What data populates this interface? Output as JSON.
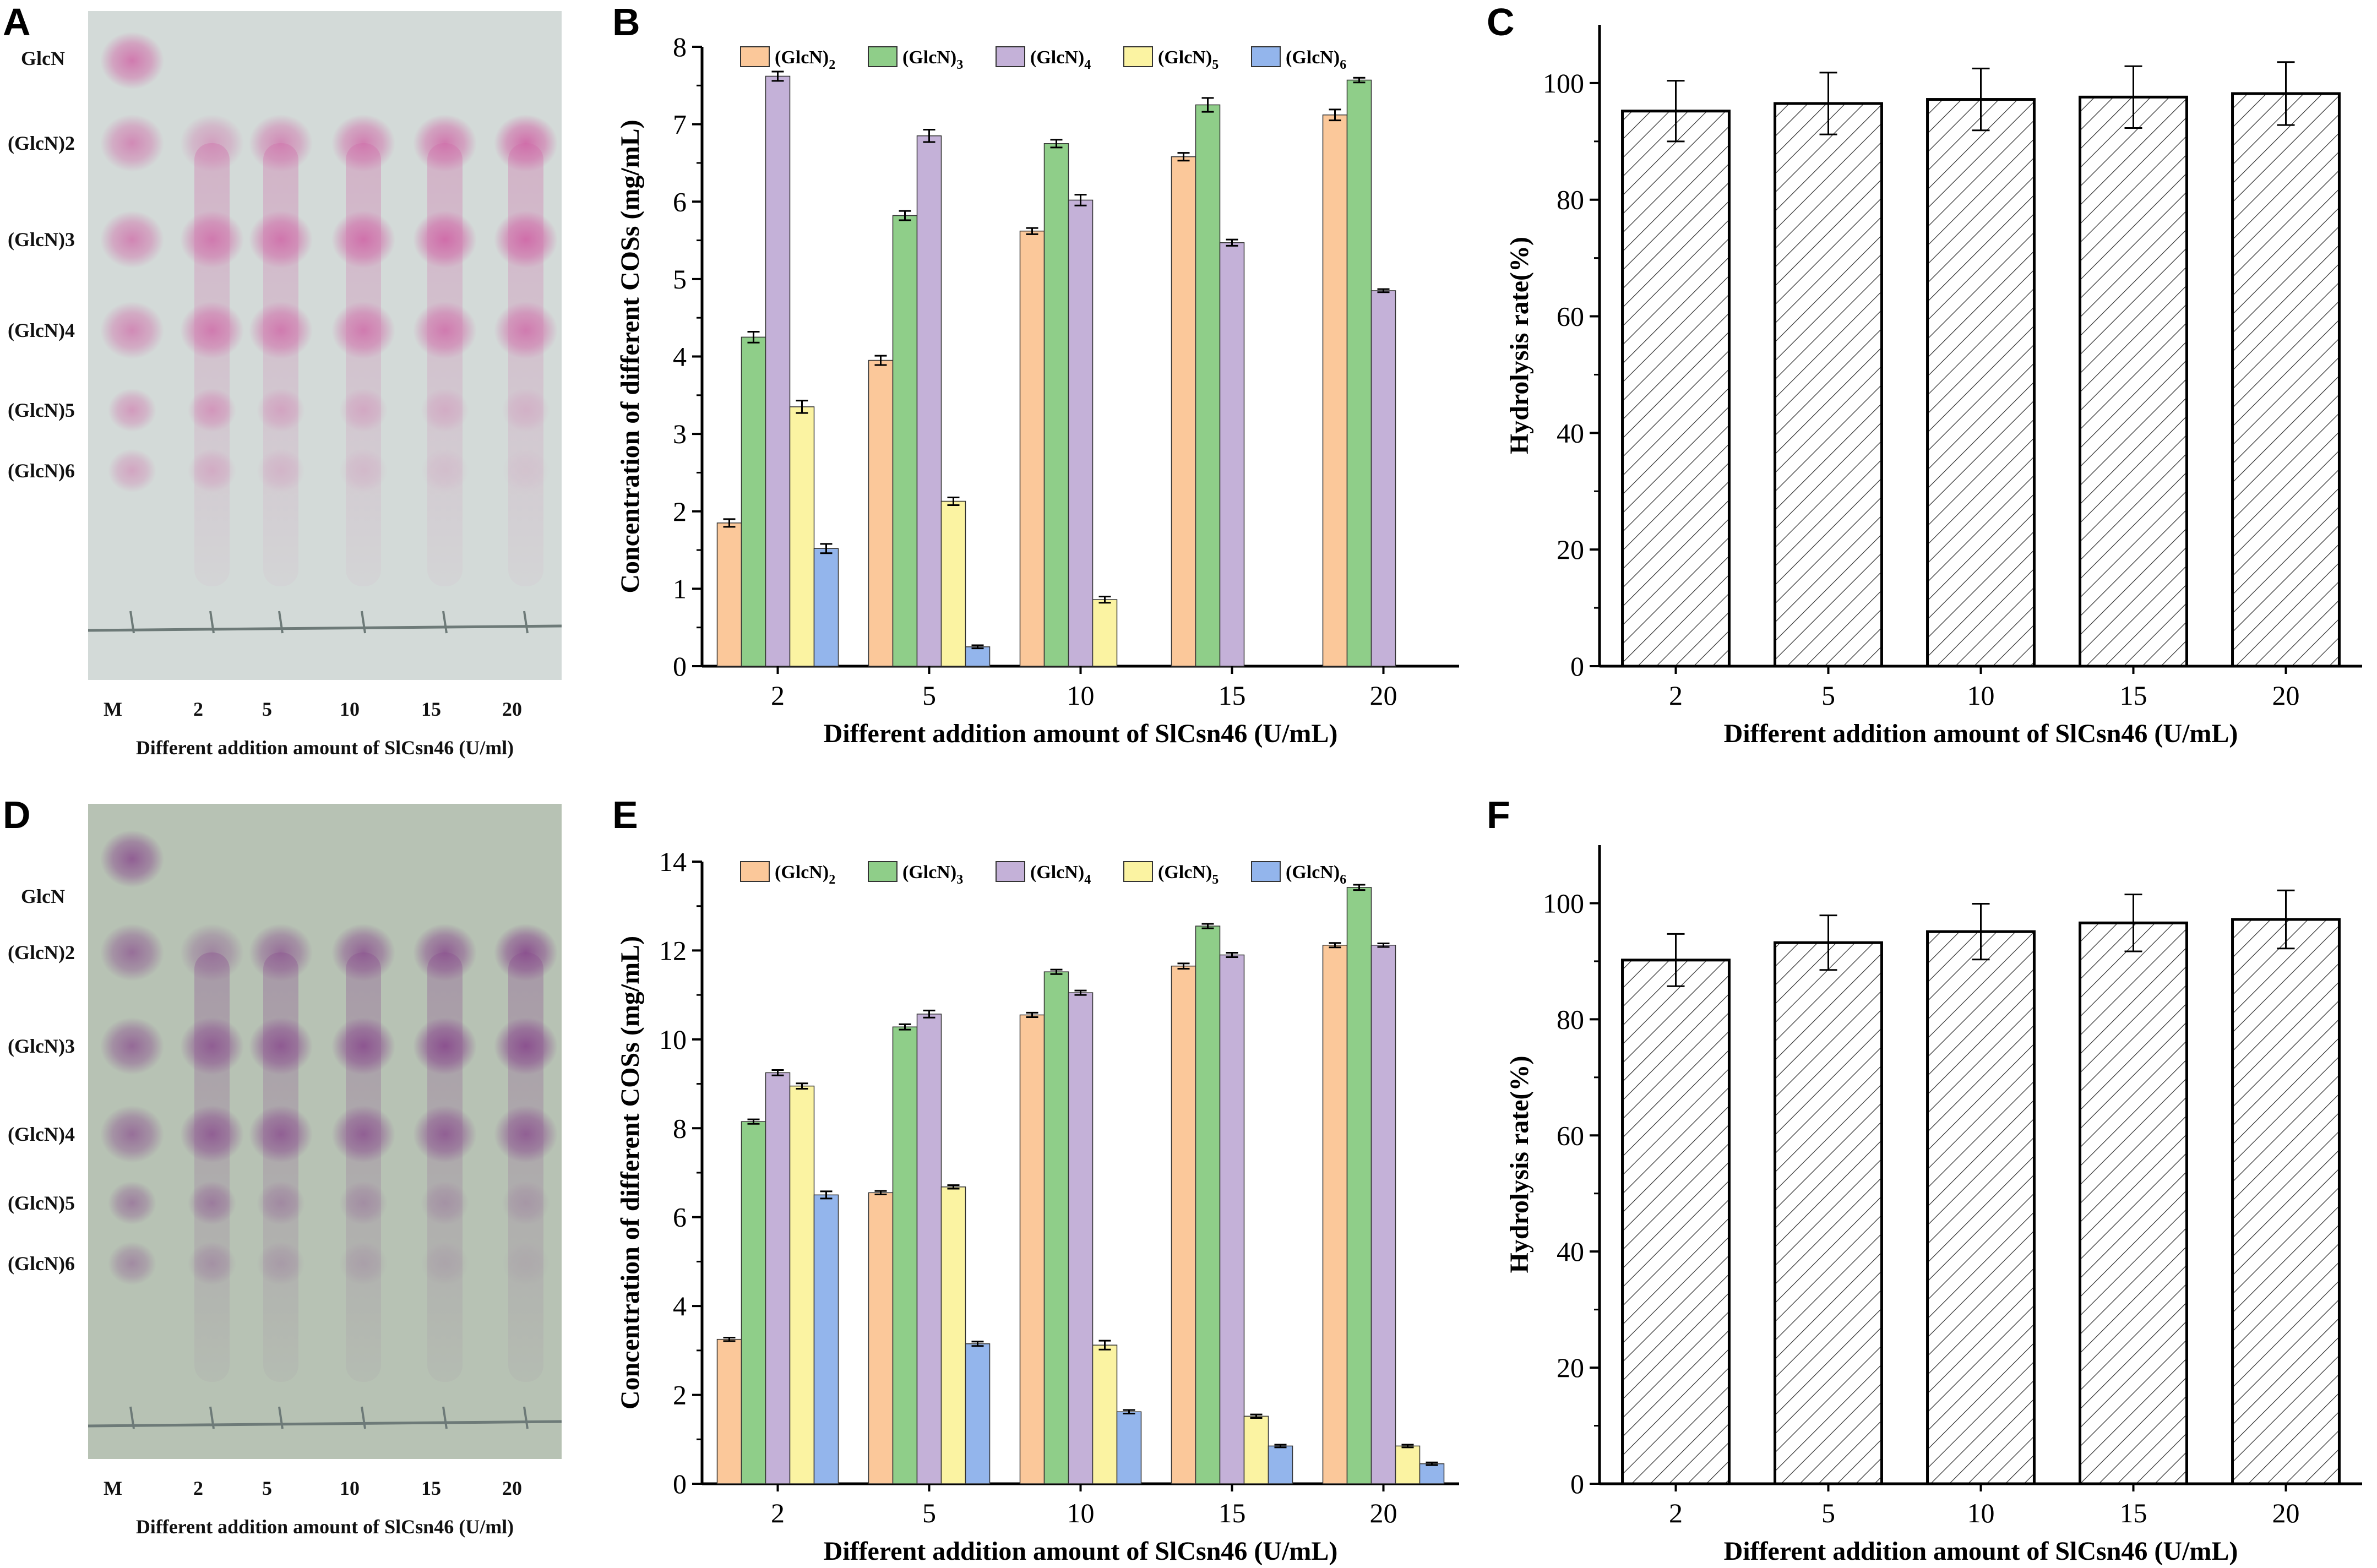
{
  "figure": {
    "panels": [
      "A",
      "B",
      "C",
      "D",
      "E",
      "F"
    ]
  },
  "tlc": [
    {
      "letter": "A",
      "spot_labels": [
        "GlcN",
        "(GlcN)2",
        "(GlcN)3",
        "(GlcN)4",
        "(GlcN)5",
        "(GlcN)6"
      ],
      "lane_labels": [
        "M",
        "2",
        "5",
        "10",
        "15",
        "20"
      ],
      "caption": "Different addition amount of SlCsn46 (U/ml)",
      "background": "#d3dad8",
      "spot_color": "#d06aa8"
    },
    {
      "letter": "D",
      "spot_labels": [
        "GlcN",
        "(GlcN)2",
        "(GlcN)3",
        "(GlcN)4",
        "(GlcN)5",
        "(GlcN)6"
      ],
      "lane_labels": [
        "M",
        "2",
        "5",
        "10",
        "15",
        "20"
      ],
      "caption": "Different addition amount of SlCsn46 (U/ml)",
      "background": "#b7c2b4",
      "spot_color": "#8a4e8e"
    }
  ],
  "chart_data": [
    {
      "letter": "B",
      "type": "bar",
      "categories": [
        "2",
        "5",
        "10",
        "15",
        "20"
      ],
      "series": [
        {
          "name": "(GlcN)2",
          "color": "#fbc89a",
          "values": [
            1.85,
            3.95,
            5.62,
            6.58,
            7.12
          ],
          "errors": [
            0.05,
            0.06,
            0.04,
            0.05,
            0.07
          ]
        },
        {
          "name": "(GlcN)3",
          "color": "#8fce89",
          "values": [
            4.25,
            5.82,
            6.75,
            7.25,
            7.57
          ],
          "errors": [
            0.07,
            0.06,
            0.05,
            0.09,
            0.03
          ]
        },
        {
          "name": "(GlcN)4",
          "color": "#c4b1d8",
          "values": [
            7.62,
            6.85,
            6.02,
            5.47,
            4.85
          ],
          "errors": [
            0.06,
            0.08,
            0.07,
            0.04,
            0.02
          ]
        },
        {
          "name": "(GlcN)5",
          "color": "#fbf3a2",
          "values": [
            3.35,
            2.13,
            0.86,
            0,
            0
          ],
          "errors": [
            0.08,
            0.05,
            0.04,
            0,
            0
          ]
        },
        {
          "name": "(GlcN)6",
          "color": "#93b5ec",
          "values": [
            1.52,
            0.25,
            0,
            0,
            0
          ],
          "errors": [
            0.06,
            0.02,
            0,
            0,
            0
          ]
        }
      ],
      "legend_labels": [
        "(GlcN)",
        "(GlcN)",
        "(GlcN)",
        "(GlcN)",
        "(GlcN)"
      ],
      "legend_subscripts": [
        "2",
        "3",
        "4",
        "5",
        "6"
      ],
      "xlabel": "Different addition amount of SlCsn46 (U/mL)",
      "ylabel": "Concentration of different COSs (mg/mL)",
      "ylim": [
        0,
        8
      ],
      "yticks": [
        "0",
        "1",
        "2",
        "3",
        "4",
        "5",
        "6",
        "7",
        "8"
      ]
    },
    {
      "letter": "C",
      "type": "bar",
      "categories": [
        "2",
        "5",
        "10",
        "15",
        "20"
      ],
      "values": [
        95.2,
        96.5,
        97.2,
        97.6,
        98.2
      ],
      "errors": [
        5.2,
        5.3,
        5.3,
        5.3,
        5.4
      ],
      "pattern": "diagonal-hatch",
      "xlabel": "Different addition amount of SlCsn46 (U/mL)",
      "ylabel": "Hydrolysis rate(%)",
      "ylim": [
        0,
        110
      ],
      "yticks": [
        "0",
        "20",
        "40",
        "60",
        "80",
        "100"
      ]
    },
    {
      "letter": "E",
      "type": "bar",
      "categories": [
        "2",
        "5",
        "10",
        "15",
        "20"
      ],
      "series": [
        {
          "name": "(GlcN)2",
          "color": "#fbc89a",
          "values": [
            3.25,
            6.55,
            10.55,
            11.65,
            12.12
          ],
          "errors": [
            0.04,
            0.04,
            0.05,
            0.06,
            0.05
          ]
        },
        {
          "name": "(GlcN)3",
          "color": "#8fce89",
          "values": [
            8.15,
            10.28,
            11.52,
            12.55,
            13.42
          ],
          "errors": [
            0.05,
            0.06,
            0.05,
            0.05,
            0.06
          ]
        },
        {
          "name": "(GlcN)4",
          "color": "#c4b1d8",
          "values": [
            9.25,
            10.57,
            11.05,
            11.9,
            12.12
          ],
          "errors": [
            0.06,
            0.08,
            0.05,
            0.05,
            0.04
          ]
        },
        {
          "name": "(GlcN)5",
          "color": "#fbf3a2",
          "values": [
            8.95,
            6.68,
            3.12,
            1.52,
            0.85
          ],
          "errors": [
            0.06,
            0.04,
            0.1,
            0.04,
            0.03
          ]
        },
        {
          "name": "(GlcN)6",
          "color": "#93b5ec",
          "values": [
            6.5,
            3.15,
            1.62,
            0.85,
            0.45
          ],
          "errors": [
            0.08,
            0.05,
            0.04,
            0.03,
            0.03
          ]
        }
      ],
      "legend_labels": [
        "(GlcN)",
        "(GlcN)",
        "(GlcN)",
        "(GlcN)",
        "(GlcN)"
      ],
      "legend_subscripts": [
        "2",
        "3",
        "4",
        "5",
        "6"
      ],
      "xlabel": "Different addition amount of SlCsn46 (U/mL)",
      "ylabel": "Concentration of different COSs (mg/mL)",
      "ylim": [
        0,
        14
      ],
      "yticks": [
        "0",
        "2",
        "4",
        "6",
        "8",
        "10",
        "12",
        "14"
      ]
    },
    {
      "letter": "F",
      "type": "bar",
      "categories": [
        "2",
        "5",
        "10",
        "15",
        "20"
      ],
      "values": [
        90.2,
        93.2,
        95.1,
        96.6,
        97.2
      ],
      "errors": [
        4.5,
        4.7,
        4.8,
        4.9,
        5.0
      ],
      "pattern": "diagonal-hatch",
      "xlabel": "Different addition amount of SlCsn46 (U/mL)",
      "ylabel": "Hydrolysis rate(%)",
      "ylim": [
        0,
        110
      ],
      "yticks": [
        "0",
        "20",
        "40",
        "60",
        "80",
        "100"
      ]
    }
  ]
}
